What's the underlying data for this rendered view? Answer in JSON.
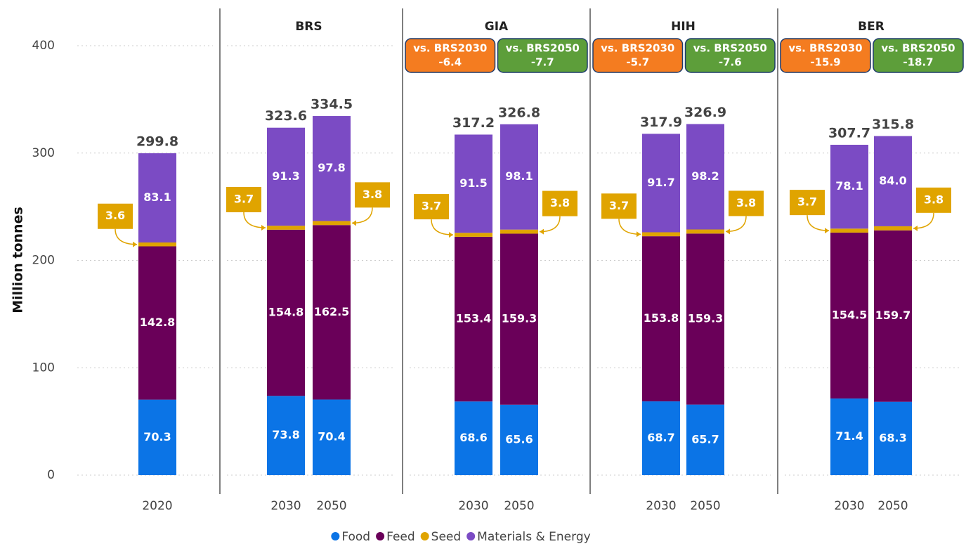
{
  "chart_data": {
    "type": "bar",
    "stacked": true,
    "ylabel": "Million tonnes",
    "ylim": [
      0,
      400
    ],
    "yticks": [
      0,
      100,
      200,
      300,
      400
    ],
    "grid": true,
    "legend": "bottom",
    "panels": [
      {
        "categories": [
          "2020"
        ]
      },
      {
        "title": "BRS",
        "categories": [
          "2030",
          "2050"
        ]
      },
      {
        "title": "GIA",
        "categories": [
          "2030",
          "2050"
        ],
        "comparisons": [
          {
            "label": "vs. BRS2030",
            "value": -6.4,
            "color": "#f47c20"
          },
          {
            "label": "vs. BRS2050",
            "value": -7.7,
            "color": "#5d9e3a"
          }
        ]
      },
      {
        "title": "HIH",
        "categories": [
          "2030",
          "2050"
        ],
        "comparisons": [
          {
            "label": "vs. BRS2030",
            "value": -5.7,
            "color": "#f47c20"
          },
          {
            "label": "vs. BRS2050",
            "value": -7.6,
            "color": "#5d9e3a"
          }
        ]
      },
      {
        "title": "BER",
        "categories": [
          "2030",
          "2050"
        ],
        "comparisons": [
          {
            "label": "vs. BRS2030",
            "value": -15.9,
            "color": "#f47c20"
          },
          {
            "label": "vs. BRS2050",
            "value": -18.7,
            "color": "#5d9e3a"
          }
        ]
      }
    ],
    "series": [
      {
        "name": "Food",
        "color": "#0b74e6",
        "values": [
          70.3,
          73.8,
          70.4,
          68.6,
          65.6,
          68.7,
          65.7,
          71.4,
          68.3
        ]
      },
      {
        "name": "Feed",
        "color": "#6a0059",
        "values": [
          142.8,
          154.8,
          162.5,
          153.4,
          159.3,
          153.8,
          159.3,
          154.5,
          159.7
        ]
      },
      {
        "name": "Seed",
        "color": "#e0a400",
        "values": [
          3.6,
          3.7,
          3.8,
          3.7,
          3.8,
          3.7,
          3.8,
          3.7,
          3.8
        ]
      },
      {
        "name": "Materials & Energy",
        "color": "#7b4bc4",
        "values": [
          83.1,
          91.3,
          97.8,
          91.5,
          98.1,
          91.7,
          98.2,
          78.1,
          84.0
        ],
        "value_labels": [
          "83.1",
          "91.3",
          "97.8",
          "91.5",
          "98.1",
          "91.7",
          "98.2",
          "78.1",
          "84.0"
        ]
      }
    ],
    "totals": [
      299.8,
      323.6,
      334.5,
      317.2,
      326.8,
      317.9,
      326.9,
      307.7,
      315.8
    ]
  }
}
